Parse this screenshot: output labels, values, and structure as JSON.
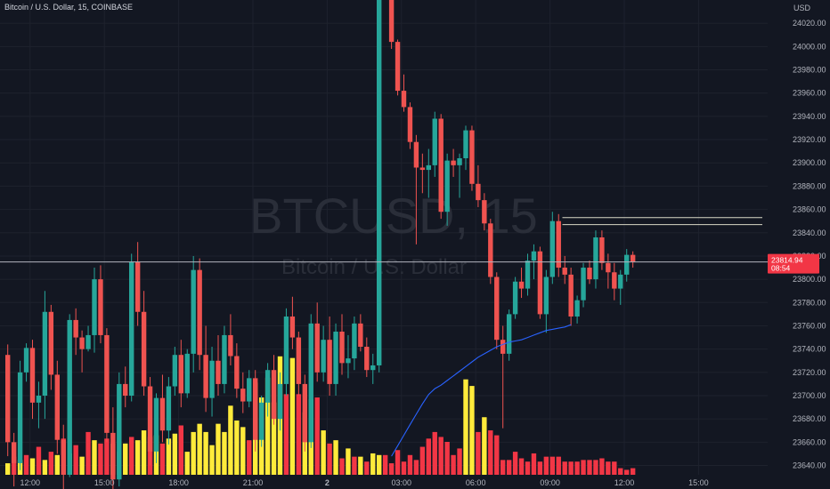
{
  "header": {
    "symbol_title": "Bitcoin / U.S. Dollar, 15, COINBASE"
  },
  "watermark": {
    "ticker": "BTCUSD, 15",
    "name": "Bitcoin / U.S. Dollar"
  },
  "price_scale": {
    "currency_label": "USD",
    "last_price": "23814.94",
    "countdown": "08:54"
  },
  "colors": {
    "background": "#131722",
    "grid": "#1e222d",
    "bull": "#26a69a",
    "bear": "#ef5350",
    "volume_yellow": "#ffeb3b",
    "volume_red": "#f23645",
    "ma_line": "#2962ff",
    "hline": "#d9d9c7",
    "last_price_line": "#b2b5be"
  },
  "chart_data": {
    "type": "candlestick",
    "symbol": "BTCUSD",
    "interval": "15",
    "exchange": "COINBASE",
    "x_tick_labels": [
      "12:00",
      "15:00",
      "18:00",
      "21:00",
      "2",
      "03:00",
      "06:00",
      "09:00",
      "12:00",
      "15:00"
    ],
    "y_tick_labels": [
      "24020.00",
      "24000.00",
      "23980.00",
      "23960.00",
      "23940.00",
      "23920.00",
      "23900.00",
      "23880.00",
      "23860.00",
      "23840.00",
      "23820.00",
      "23800.00",
      "23780.00",
      "23760.00",
      "23740.00",
      "23720.00",
      "23700.00",
      "23680.00",
      "23660.00",
      "23640.00"
    ],
    "y_ticks": [
      24020,
      24000,
      23980,
      23960,
      23940,
      23920,
      23900,
      23880,
      23860,
      23840,
      23820,
      23800,
      23780,
      23760,
      23740,
      23720,
      23700,
      23680,
      23660,
      23640
    ],
    "x_ticks_bar_index": [
      4,
      16,
      28,
      40,
      52,
      64,
      76,
      88,
      100,
      112
    ],
    "ylim": [
      23632,
      24040
    ],
    "candles": [
      {
        "o": 23735,
        "h": 23744,
        "l": 23648,
        "c": 23660
      },
      {
        "o": 23660,
        "h": 23668,
        "l": 23622,
        "c": 23642
      },
      {
        "o": 23642,
        "h": 23730,
        "l": 23636,
        "c": 23720
      },
      {
        "o": 23720,
        "h": 23745,
        "l": 23712,
        "c": 23741
      },
      {
        "o": 23741,
        "h": 23748,
        "l": 23680,
        "c": 23694
      },
      {
        "o": 23694,
        "h": 23712,
        "l": 23672,
        "c": 23700
      },
      {
        "o": 23700,
        "h": 23790,
        "l": 23680,
        "c": 23772
      },
      {
        "o": 23772,
        "h": 23778,
        "l": 23705,
        "c": 23718
      },
      {
        "o": 23718,
        "h": 23730,
        "l": 23650,
        "c": 23662
      },
      {
        "o": 23662,
        "h": 23675,
        "l": 23615,
        "c": 23632
      },
      {
        "o": 23632,
        "h": 23770,
        "l": 23630,
        "c": 23765
      },
      {
        "o": 23765,
        "h": 23775,
        "l": 23735,
        "c": 23750
      },
      {
        "o": 23750,
        "h": 23756,
        "l": 23720,
        "c": 23740
      },
      {
        "o": 23740,
        "h": 23760,
        "l": 23738,
        "c": 23752
      },
      {
        "o": 23752,
        "h": 23810,
        "l": 23737,
        "c": 23800
      },
      {
        "o": 23800,
        "h": 23812,
        "l": 23745,
        "c": 23752
      },
      {
        "o": 23752,
        "h": 23758,
        "l": 23660,
        "c": 23668
      },
      {
        "o": 23668,
        "h": 23690,
        "l": 23618,
        "c": 23628
      },
      {
        "o": 23628,
        "h": 23720,
        "l": 23622,
        "c": 23710
      },
      {
        "o": 23710,
        "h": 23725,
        "l": 23690,
        "c": 23700
      },
      {
        "o": 23700,
        "h": 23822,
        "l": 23695,
        "c": 23815
      },
      {
        "o": 23815,
        "h": 23832,
        "l": 23760,
        "c": 23772
      },
      {
        "o": 23772,
        "h": 23790,
        "l": 23700,
        "c": 23708
      },
      {
        "o": 23708,
        "h": 23716,
        "l": 23640,
        "c": 23652
      },
      {
        "o": 23652,
        "h": 23702,
        "l": 23642,
        "c": 23698
      },
      {
        "o": 23698,
        "h": 23718,
        "l": 23660,
        "c": 23670
      },
      {
        "o": 23670,
        "h": 23716,
        "l": 23658,
        "c": 23708
      },
      {
        "o": 23708,
        "h": 23742,
        "l": 23700,
        "c": 23735
      },
      {
        "o": 23735,
        "h": 23748,
        "l": 23690,
        "c": 23702
      },
      {
        "o": 23702,
        "h": 23740,
        "l": 23698,
        "c": 23736
      },
      {
        "o": 23736,
        "h": 23820,
        "l": 23720,
        "c": 23808
      },
      {
        "o": 23808,
        "h": 23818,
        "l": 23722,
        "c": 23735
      },
      {
        "o": 23735,
        "h": 23760,
        "l": 23686,
        "c": 23698
      },
      {
        "o": 23698,
        "h": 23742,
        "l": 23682,
        "c": 23730
      },
      {
        "o": 23730,
        "h": 23752,
        "l": 23700,
        "c": 23710
      },
      {
        "o": 23710,
        "h": 23760,
        "l": 23702,
        "c": 23752
      },
      {
        "o": 23752,
        "h": 23770,
        "l": 23726,
        "c": 23734
      },
      {
        "o": 23734,
        "h": 23745,
        "l": 23698,
        "c": 23706
      },
      {
        "o": 23706,
        "h": 23720,
        "l": 23685,
        "c": 23695
      },
      {
        "o": 23695,
        "h": 23722,
        "l": 23690,
        "c": 23715
      },
      {
        "o": 23715,
        "h": 23722,
        "l": 23652,
        "c": 23662
      },
      {
        "o": 23662,
        "h": 23700,
        "l": 23656,
        "c": 23694
      },
      {
        "o": 23694,
        "h": 23728,
        "l": 23682,
        "c": 23722
      },
      {
        "o": 23722,
        "h": 23735,
        "l": 23675,
        "c": 23680
      },
      {
        "o": 23680,
        "h": 23720,
        "l": 23670,
        "c": 23710
      },
      {
        "o": 23710,
        "h": 23775,
        "l": 23700,
        "c": 23768
      },
      {
        "o": 23768,
        "h": 23785,
        "l": 23740,
        "c": 23750
      },
      {
        "o": 23750,
        "h": 23755,
        "l": 23700,
        "c": 23710
      },
      {
        "o": 23710,
        "h": 23718,
        "l": 23652,
        "c": 23660
      },
      {
        "o": 23660,
        "h": 23770,
        "l": 23655,
        "c": 23762
      },
      {
        "o": 23762,
        "h": 23780,
        "l": 23712,
        "c": 23720
      },
      {
        "o": 23720,
        "h": 23760,
        "l": 23712,
        "c": 23748
      },
      {
        "o": 23748,
        "h": 23768,
        "l": 23700,
        "c": 23710
      },
      {
        "o": 23710,
        "h": 23762,
        "l": 23700,
        "c": 23755
      },
      {
        "o": 23755,
        "h": 23770,
        "l": 23718,
        "c": 23728
      },
      {
        "o": 23728,
        "h": 23752,
        "l": 23715,
        "c": 23732
      },
      {
        "o": 23732,
        "h": 23768,
        "l": 23722,
        "c": 23762
      },
      {
        "o": 23762,
        "h": 23770,
        "l": 23738,
        "c": 23742
      },
      {
        "o": 23742,
        "h": 23750,
        "l": 23716,
        "c": 23722
      },
      {
        "o": 23722,
        "h": 23736,
        "l": 23710,
        "c": 23726
      },
      {
        "o": 23726,
        "h": 24060,
        "l": 23720,
        "c": 24055
      },
      {
        "o": 24055,
        "h": 24060,
        "l": 24040,
        "c": 24044
      },
      {
        "o": 24044,
        "h": 24060,
        "l": 23998,
        "c": 24004
      },
      {
        "o": 24004,
        "h": 24006,
        "l": 23958,
        "c": 23962
      },
      {
        "o": 23962,
        "h": 23976,
        "l": 23944,
        "c": 23948
      },
      {
        "o": 23948,
        "h": 23952,
        "l": 23912,
        "c": 23918
      },
      {
        "o": 23918,
        "h": 23924,
        "l": 23830,
        "c": 23896
      },
      {
        "o": 23896,
        "h": 23908,
        "l": 23874,
        "c": 23894
      },
      {
        "o": 23894,
        "h": 23912,
        "l": 23870,
        "c": 23898
      },
      {
        "o": 23898,
        "h": 23944,
        "l": 23888,
        "c": 23938
      },
      {
        "o": 23938,
        "h": 23942,
        "l": 23852,
        "c": 23858
      },
      {
        "o": 23858,
        "h": 23908,
        "l": 23846,
        "c": 23902
      },
      {
        "o": 23902,
        "h": 23912,
        "l": 23888,
        "c": 23898
      },
      {
        "o": 23898,
        "h": 23908,
        "l": 23870,
        "c": 23904
      },
      {
        "o": 23904,
        "h": 23932,
        "l": 23894,
        "c": 23928
      },
      {
        "o": 23928,
        "h": 23932,
        "l": 23876,
        "c": 23882
      },
      {
        "o": 23882,
        "h": 23898,
        "l": 23862,
        "c": 23868
      },
      {
        "o": 23868,
        "h": 23874,
        "l": 23842,
        "c": 23848
      },
      {
        "o": 23848,
        "h": 23852,
        "l": 23796,
        "c": 23802
      },
      {
        "o": 23802,
        "h": 23806,
        "l": 23740,
        "c": 23748
      },
      {
        "o": 23748,
        "h": 23760,
        "l": 23672,
        "c": 23736
      },
      {
        "o": 23736,
        "h": 23774,
        "l": 23730,
        "c": 23770
      },
      {
        "o": 23770,
        "h": 23802,
        "l": 23766,
        "c": 23798
      },
      {
        "o": 23798,
        "h": 23810,
        "l": 23784,
        "c": 23792
      },
      {
        "o": 23792,
        "h": 23822,
        "l": 23786,
        "c": 23816
      },
      {
        "o": 23816,
        "h": 23830,
        "l": 23800,
        "c": 23824
      },
      {
        "o": 23824,
        "h": 23828,
        "l": 23766,
        "c": 23770
      },
      {
        "o": 23770,
        "h": 23808,
        "l": 23754,
        "c": 23802
      },
      {
        "o": 23802,
        "h": 23858,
        "l": 23796,
        "c": 23850
      },
      {
        "o": 23850,
        "h": 23856,
        "l": 23802,
        "c": 23810
      },
      {
        "o": 23810,
        "h": 23820,
        "l": 23796,
        "c": 23804
      },
      {
        "o": 23804,
        "h": 23810,
        "l": 23760,
        "c": 23768
      },
      {
        "o": 23768,
        "h": 23786,
        "l": 23762,
        "c": 23782
      },
      {
        "o": 23782,
        "h": 23814,
        "l": 23776,
        "c": 23810
      },
      {
        "o": 23810,
        "h": 23816,
        "l": 23796,
        "c": 23800
      },
      {
        "o": 23800,
        "h": 23842,
        "l": 23792,
        "c": 23836
      },
      {
        "o": 23836,
        "h": 23842,
        "l": 23808,
        "c": 23814
      },
      {
        "o": 23814,
        "h": 23822,
        "l": 23792,
        "c": 23806
      },
      {
        "o": 23806,
        "h": 23814,
        "l": 23782,
        "c": 23792
      },
      {
        "o": 23792,
        "h": 23808,
        "l": 23778,
        "c": 23804
      },
      {
        "o": 23804,
        "h": 23826,
        "l": 23798,
        "c": 23821
      },
      {
        "o": 23821,
        "h": 23824,
        "l": 23810,
        "c": 23815
      }
    ],
    "volume": [
      7,
      11,
      9,
      12,
      10,
      17,
      9,
      14,
      12,
      22,
      13,
      18,
      11,
      26,
      21,
      19,
      22,
      19,
      14,
      19,
      23,
      21,
      27,
      23,
      24,
      19,
      22,
      25,
      30,
      14,
      26,
      31,
      26,
      18,
      31,
      26,
      42,
      33,
      29,
      21,
      56,
      47,
      59,
      44,
      72,
      49,
      71,
      49,
      38,
      46,
      47,
      27,
      19,
      21,
      10,
      16,
      11,
      11,
      8,
      13,
      12,
      12,
      7,
      15,
      8,
      12,
      9,
      17,
      22,
      26,
      23,
      20,
      12,
      16,
      58,
      54,
      26,
      35,
      27,
      24,
      9,
      9,
      14,
      10,
      8,
      13,
      8,
      11,
      11,
      11,
      8,
      8,
      8,
      9,
      9,
      9,
      10,
      8,
      8,
      4,
      3,
      4
    ],
    "volume_colors": [
      "y",
      "r",
      "y",
      "r",
      "y",
      "r",
      "y",
      "r",
      "y",
      "r",
      "y",
      "r",
      "y",
      "r",
      "y",
      "r",
      "r",
      "y",
      "r",
      "y",
      "r",
      "y",
      "y",
      "r",
      "y",
      "r",
      "y",
      "y",
      "r",
      "y",
      "y",
      "y",
      "y",
      "y",
      "y",
      "y",
      "y",
      "y",
      "y",
      "r",
      "y",
      "y",
      "y",
      "y",
      "y",
      "r",
      "y",
      "r",
      "y",
      "y",
      "r",
      "y",
      "r",
      "y",
      "r",
      "y",
      "r",
      "y",
      "r",
      "y",
      "y",
      "r",
      "r",
      "r",
      "r",
      "r",
      "r",
      "r",
      "r",
      "r",
      "r",
      "r",
      "r",
      "r",
      "y",
      "y",
      "r",
      "y",
      "r",
      "r",
      "r",
      "r",
      "r",
      "r",
      "r",
      "r",
      "r",
      "r",
      "r",
      "r",
      "r",
      "r",
      "r",
      "r",
      "r",
      "r",
      "r",
      "r",
      "r",
      "r",
      "r",
      "r"
    ],
    "moving_average": {
      "from_bar": 62,
      "values": [
        23648,
        23657,
        23666,
        23675,
        23684,
        23693,
        23701,
        23706,
        23709,
        23713,
        23717,
        23721,
        23725,
        23729,
        23733,
        23736,
        23739,
        23742,
        23744,
        23746,
        23747,
        23748,
        23750,
        23752,
        23754,
        23756,
        23757,
        23758,
        23759,
        23761
      ]
    },
    "horizontal_lines": [
      23853,
      23847
    ],
    "last_price": 23814.94
  }
}
